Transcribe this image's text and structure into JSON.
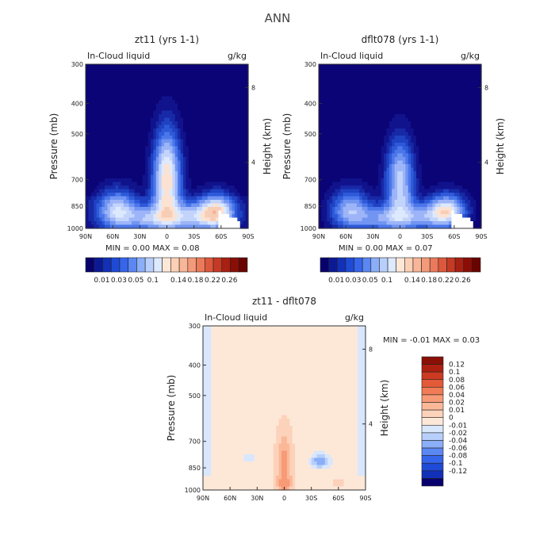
{
  "page_title": "ANN",
  "colors": {
    "bar_neg": [
      "#08006c",
      "#0b1a94",
      "#1230b8",
      "#1f4ad6",
      "#3565ea",
      "#5b87f2",
      "#8aaef7",
      "#b8cffb",
      "#d9e7fd"
    ],
    "bar_pos": [
      "#fde8d8",
      "#fcd2ba",
      "#fbb898",
      "#f79a76",
      "#f17b55",
      "#e45a38",
      "#cc3a22",
      "#ad2010",
      "#8a0f06",
      "#6a0400"
    ],
    "seq": [
      "#0b0476",
      "#10138c",
      "#1729a6",
      "#1f42c2",
      "#2e5ad9",
      "#4b77ea",
      "#7295f2",
      "#9db5f8",
      "#c3d4fb",
      "#dde9fd",
      "#fbe2d2",
      "#f8cdb5",
      "#f3b194",
      "#ec9374",
      "#e27356",
      "#d25238",
      "#bb3220",
      "#9f1b0e",
      "#820c04",
      "#640500"
    ],
    "diff": [
      "#08006c",
      "#0b1a94",
      "#1230b8",
      "#1f4ad6",
      "#3565ea",
      "#5b87f2",
      "#8aaef7",
      "#b8cffb",
      "#d9e7fd",
      "#fde8d8",
      "#fcd2ba",
      "#fbb898",
      "#f79a76",
      "#f17b55",
      "#e45a38",
      "#cc3a22",
      "#ad2010",
      "#8a0f06"
    ]
  },
  "chart_data": [
    {
      "type": "heatmap",
      "title": "zt11 (yrs 1-1)",
      "left_label": "In-Cloud liquid",
      "right_label": "g/kg",
      "ylabel": "Pressure (mb)",
      "y2label": "Height (km)",
      "x_ticks": [
        "90N",
        "60N",
        "30N",
        "0",
        "30S",
        "60S",
        "90S"
      ],
      "y_ticks": [
        "300",
        "400",
        "500",
        "700",
        "850",
        "1000"
      ],
      "y2_ticks": [
        "8",
        "4"
      ],
      "stats": {
        "min_label": "MIN =",
        "min": "0.00",
        "max_label": "MAX =",
        "max": "0.08"
      },
      "levels": [
        "0.01",
        "0.03",
        "0.05",
        "0.1",
        "0.14",
        "0.18",
        "0.22",
        "0.26"
      ]
    },
    {
      "type": "heatmap",
      "title": "dflt078 (yrs 1-1)",
      "left_label": "In-Cloud liquid",
      "right_label": "g/kg",
      "ylabel": "Pressure (mb)",
      "y2label": "Height (km)",
      "x_ticks": [
        "90N",
        "60N",
        "30N",
        "0",
        "30S",
        "60S",
        "90S"
      ],
      "y_ticks": [
        "300",
        "400",
        "500",
        "700",
        "850",
        "1000"
      ],
      "y2_ticks": [
        "8",
        "4"
      ],
      "stats": {
        "min_label": "MIN =",
        "min": "0.00",
        "max_label": "MAX =",
        "max": "0.07"
      },
      "levels": [
        "0.01",
        "0.03",
        "0.05",
        "0.1",
        "0.14",
        "0.18",
        "0.22",
        "0.26"
      ]
    },
    {
      "type": "heatmap",
      "title": "zt11 - dflt078",
      "left_label": "In-Cloud liquid",
      "right_label": "g/kg",
      "ylabel": "Pressure (mb)",
      "y2label": "Height (km)",
      "x_ticks": [
        "90N",
        "60N",
        "30N",
        "0",
        "30S",
        "60S",
        "90S"
      ],
      "y_ticks": [
        "300",
        "400",
        "500",
        "700",
        "850",
        "1000"
      ],
      "y2_ticks": [
        "8",
        "4"
      ],
      "stats": {
        "min_label": "MIN =",
        "min": "-0.01",
        "max_label": "MAX =",
        "max": "0.03"
      },
      "levels": [
        "0.12",
        "0.1",
        "0.08",
        "0.06",
        "0.04",
        "0.02",
        "0.01",
        "0",
        "-0.01",
        "-0.02",
        "-0.04",
        "-0.06",
        "-0.08",
        "-0.1",
        "-0.12"
      ]
    }
  ]
}
